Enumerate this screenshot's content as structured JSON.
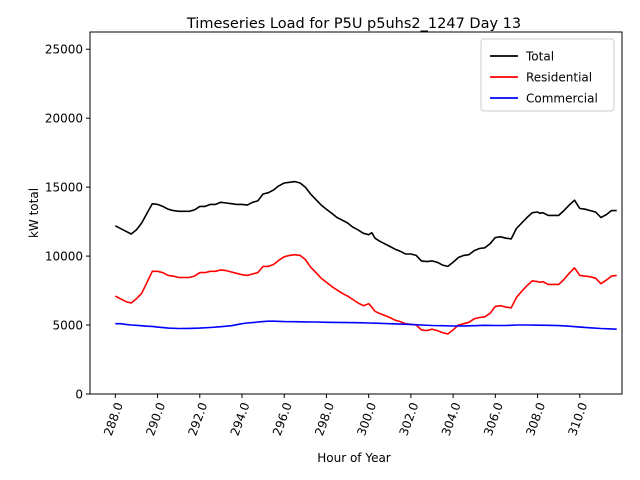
{
  "chart_data": {
    "type": "line",
    "title": "Timeseries Load for P5U p5uhs2_1247  Day 13",
    "xlabel": "Hour of Year",
    "ylabel": "kW total",
    "xlim": [
      286.8,
      312.0
    ],
    "ylim": [
      0,
      26250
    ],
    "xticks": [
      288,
      290,
      292,
      294,
      296,
      298,
      300,
      302,
      304,
      306,
      308,
      310
    ],
    "xtick_labels": [
      "288.0",
      "290.0",
      "292.0",
      "294.0",
      "296.0",
      "298.0",
      "300.0",
      "302.0",
      "304.0",
      "306.0",
      "308.0",
      "310.0"
    ],
    "yticks": [
      0,
      5000,
      10000,
      15000,
      20000,
      25000
    ],
    "ytick_labels": [
      "0",
      "5000",
      "10000",
      "15000",
      "20000",
      "25000"
    ],
    "grid": false,
    "legend_position": "top-right",
    "series": [
      {
        "name": "Total",
        "color": "#000000",
        "points": [
          [
            288.0,
            12200
          ],
          [
            288.5,
            11800
          ],
          [
            288.75,
            11600
          ],
          [
            289.0,
            11900
          ],
          [
            289.25,
            12400
          ],
          [
            289.5,
            13100
          ],
          [
            289.75,
            13800
          ],
          [
            290.0,
            13750
          ],
          [
            290.25,
            13600
          ],
          [
            290.5,
            13400
          ],
          [
            290.75,
            13300
          ],
          [
            291.0,
            13250
          ],
          [
            291.25,
            13250
          ],
          [
            291.5,
            13250
          ],
          [
            291.75,
            13350
          ],
          [
            292.0,
            13600
          ],
          [
            292.25,
            13600
          ],
          [
            292.5,
            13750
          ],
          [
            292.75,
            13750
          ],
          [
            293.0,
            13900
          ],
          [
            293.25,
            13850
          ],
          [
            293.5,
            13800
          ],
          [
            293.75,
            13750
          ],
          [
            294.0,
            13750
          ],
          [
            294.25,
            13700
          ],
          [
            294.5,
            13900
          ],
          [
            294.75,
            14000
          ],
          [
            295.0,
            14500
          ],
          [
            295.25,
            14600
          ],
          [
            295.5,
            14800
          ],
          [
            295.75,
            15100
          ],
          [
            296.0,
            15300
          ],
          [
            296.25,
            15350
          ],
          [
            296.5,
            15400
          ],
          [
            296.75,
            15300
          ],
          [
            297.0,
            15000
          ],
          [
            297.25,
            14500
          ],
          [
            297.5,
            14100
          ],
          [
            297.75,
            13700
          ],
          [
            298.0,
            13400
          ],
          [
            298.25,
            13100
          ],
          [
            298.5,
            12800
          ],
          [
            298.75,
            12600
          ],
          [
            299.0,
            12400
          ],
          [
            299.25,
            12100
          ],
          [
            299.5,
            11900
          ],
          [
            299.75,
            11650
          ],
          [
            300.0,
            11550
          ],
          [
            300.15,
            11700
          ],
          [
            300.3,
            11300
          ],
          [
            300.5,
            11100
          ],
          [
            300.75,
            10900
          ],
          [
            301.0,
            10700
          ],
          [
            301.25,
            10500
          ],
          [
            301.5,
            10350
          ],
          [
            301.75,
            10150
          ],
          [
            302.0,
            10150
          ],
          [
            302.25,
            10050
          ],
          [
            302.5,
            9650
          ],
          [
            302.75,
            9600
          ],
          [
            303.0,
            9650
          ],
          [
            303.25,
            9550
          ],
          [
            303.5,
            9350
          ],
          [
            303.75,
            9250
          ],
          [
            304.0,
            9550
          ],
          [
            304.25,
            9900
          ],
          [
            304.5,
            10050
          ],
          [
            304.75,
            10100
          ],
          [
            305.0,
            10400
          ],
          [
            305.25,
            10550
          ],
          [
            305.5,
            10600
          ],
          [
            305.75,
            10900
          ],
          [
            306.0,
            11350
          ],
          [
            306.25,
            11400
          ],
          [
            306.5,
            11300
          ],
          [
            306.75,
            11250
          ],
          [
            307.0,
            12000
          ],
          [
            307.25,
            12400
          ],
          [
            307.5,
            12800
          ],
          [
            307.75,
            13150
          ],
          [
            308.0,
            13200
          ],
          [
            308.1,
            13100
          ],
          [
            308.25,
            13150
          ],
          [
            308.5,
            12950
          ],
          [
            308.75,
            12950
          ],
          [
            309.0,
            12950
          ],
          [
            309.25,
            13300
          ],
          [
            309.5,
            13700
          ],
          [
            309.75,
            14050
          ],
          [
            310.0,
            13450
          ],
          [
            310.25,
            13400
          ],
          [
            310.5,
            13300
          ],
          [
            310.75,
            13200
          ],
          [
            311.0,
            12800
          ],
          [
            311.25,
            13000
          ],
          [
            311.5,
            13300
          ],
          [
            311.75,
            13300
          ]
        ]
      },
      {
        "name": "Residential",
        "color": "#ff0000",
        "points": [
          [
            288.0,
            7100
          ],
          [
            288.25,
            6900
          ],
          [
            288.5,
            6700
          ],
          [
            288.75,
            6600
          ],
          [
            289.0,
            6900
          ],
          [
            289.25,
            7300
          ],
          [
            289.5,
            8100
          ],
          [
            289.75,
            8900
          ],
          [
            290.0,
            8900
          ],
          [
            290.25,
            8800
          ],
          [
            290.5,
            8600
          ],
          [
            290.75,
            8550
          ],
          [
            291.0,
            8450
          ],
          [
            291.25,
            8450
          ],
          [
            291.5,
            8450
          ],
          [
            291.75,
            8550
          ],
          [
            292.0,
            8800
          ],
          [
            292.25,
            8800
          ],
          [
            292.5,
            8900
          ],
          [
            292.75,
            8900
          ],
          [
            293.0,
            9000
          ],
          [
            293.25,
            8950
          ],
          [
            293.5,
            8850
          ],
          [
            293.75,
            8750
          ],
          [
            294.0,
            8650
          ],
          [
            294.25,
            8600
          ],
          [
            294.5,
            8700
          ],
          [
            294.75,
            8800
          ],
          [
            295.0,
            9250
          ],
          [
            295.25,
            9250
          ],
          [
            295.5,
            9400
          ],
          [
            295.75,
            9700
          ],
          [
            296.0,
            9950
          ],
          [
            296.25,
            10050
          ],
          [
            296.5,
            10100
          ],
          [
            296.75,
            10050
          ],
          [
            297.0,
            9750
          ],
          [
            297.25,
            9200
          ],
          [
            297.5,
            8800
          ],
          [
            297.75,
            8400
          ],
          [
            298.0,
            8100
          ],
          [
            298.25,
            7800
          ],
          [
            298.5,
            7550
          ],
          [
            298.75,
            7300
          ],
          [
            299.0,
            7100
          ],
          [
            299.25,
            6850
          ],
          [
            299.5,
            6600
          ],
          [
            299.75,
            6400
          ],
          [
            300.0,
            6550
          ],
          [
            300.15,
            6300
          ],
          [
            300.3,
            6000
          ],
          [
            300.5,
            5850
          ],
          [
            300.75,
            5700
          ],
          [
            301.0,
            5550
          ],
          [
            301.25,
            5350
          ],
          [
            301.5,
            5250
          ],
          [
            301.75,
            5100
          ],
          [
            302.0,
            5050
          ],
          [
            302.25,
            5000
          ],
          [
            302.5,
            4650
          ],
          [
            302.75,
            4600
          ],
          [
            303.0,
            4700
          ],
          [
            303.25,
            4600
          ],
          [
            303.5,
            4450
          ],
          [
            303.75,
            4350
          ],
          [
            304.0,
            4650
          ],
          [
            304.25,
            5000
          ],
          [
            304.5,
            5100
          ],
          [
            304.75,
            5200
          ],
          [
            305.0,
            5450
          ],
          [
            305.25,
            5550
          ],
          [
            305.5,
            5600
          ],
          [
            305.75,
            5850
          ],
          [
            306.0,
            6350
          ],
          [
            306.25,
            6400
          ],
          [
            306.5,
            6300
          ],
          [
            306.75,
            6250
          ],
          [
            307.0,
            7000
          ],
          [
            307.25,
            7450
          ],
          [
            307.5,
            7850
          ],
          [
            307.75,
            8200
          ],
          [
            308.0,
            8150
          ],
          [
            308.1,
            8100
          ],
          [
            308.25,
            8150
          ],
          [
            308.5,
            7950
          ],
          [
            308.75,
            7950
          ],
          [
            309.0,
            7950
          ],
          [
            309.25,
            8300
          ],
          [
            309.5,
            8750
          ],
          [
            309.75,
            9150
          ],
          [
            310.0,
            8600
          ],
          [
            310.25,
            8550
          ],
          [
            310.5,
            8500
          ],
          [
            310.75,
            8400
          ],
          [
            311.0,
            8000
          ],
          [
            311.25,
            8250
          ],
          [
            311.5,
            8550
          ],
          [
            311.75,
            8600
          ]
        ]
      },
      {
        "name": "Commercial",
        "color": "#0000ff",
        "points": [
          [
            288.0,
            5100
          ],
          [
            288.25,
            5100
          ],
          [
            288.5,
            5050
          ],
          [
            288.75,
            5000
          ],
          [
            289.0,
            4980
          ],
          [
            289.5,
            4920
          ],
          [
            289.75,
            4900
          ],
          [
            290.0,
            4850
          ],
          [
            290.5,
            4780
          ],
          [
            291.0,
            4750
          ],
          [
            291.5,
            4760
          ],
          [
            292.0,
            4780
          ],
          [
            292.5,
            4820
          ],
          [
            293.0,
            4880
          ],
          [
            293.5,
            4950
          ],
          [
            294.0,
            5100
          ],
          [
            294.25,
            5150
          ],
          [
            294.5,
            5180
          ],
          [
            294.75,
            5220
          ],
          [
            295.0,
            5250
          ],
          [
            295.25,
            5280
          ],
          [
            295.5,
            5280
          ],
          [
            296.0,
            5250
          ],
          [
            296.5,
            5240
          ],
          [
            297.0,
            5230
          ],
          [
            297.5,
            5220
          ],
          [
            298.0,
            5200
          ],
          [
            298.5,
            5190
          ],
          [
            299.0,
            5180
          ],
          [
            299.5,
            5170
          ],
          [
            300.0,
            5150
          ],
          [
            300.5,
            5130
          ],
          [
            301.0,
            5100
          ],
          [
            301.5,
            5070
          ],
          [
            302.0,
            5050
          ],
          [
            302.5,
            5000
          ],
          [
            303.0,
            4970
          ],
          [
            303.5,
            4950
          ],
          [
            304.0,
            4930
          ],
          [
            304.5,
            4940
          ],
          [
            305.0,
            4950
          ],
          [
            305.5,
            4980
          ],
          [
            306.0,
            4970
          ],
          [
            306.5,
            4970
          ],
          [
            307.0,
            5000
          ],
          [
            307.5,
            5000
          ],
          [
            308.0,
            4990
          ],
          [
            308.5,
            4980
          ],
          [
            309.0,
            4960
          ],
          [
            309.5,
            4920
          ],
          [
            310.0,
            4850
          ],
          [
            310.5,
            4800
          ],
          [
            311.0,
            4750
          ],
          [
            311.5,
            4720
          ],
          [
            311.75,
            4700
          ]
        ]
      }
    ]
  }
}
